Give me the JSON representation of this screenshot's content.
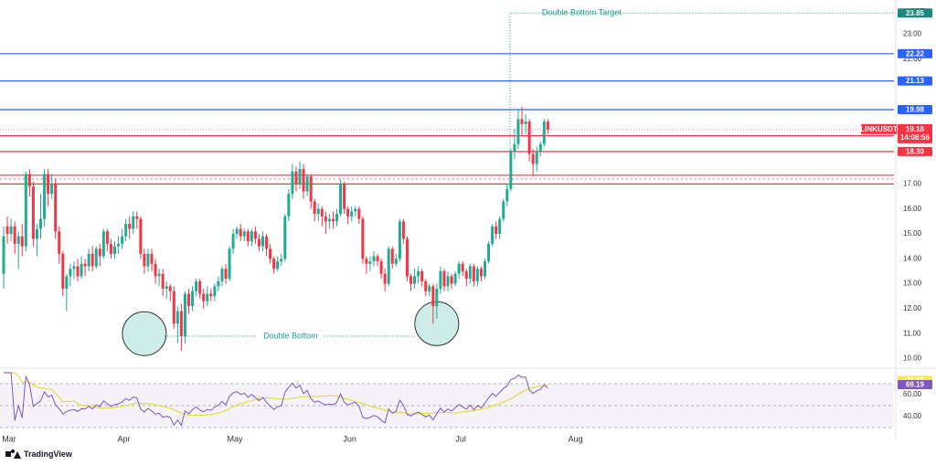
{
  "currency_label": "USDT",
  "branding": "TradingView",
  "colors": {
    "up": "#22ab94",
    "down": "#f23645",
    "resistance_blue": "#2962ff",
    "support_red": "#f23645",
    "rsi_line": "#7e57c2",
    "rsi_ma": "#e6dc3c",
    "annotation": "#1b9e8f"
  },
  "chart_data": {
    "type": "candlestick",
    "symbol": "LINKUSDT",
    "price_axis_ticks": [
      10.0,
      11.0,
      12.0,
      13.0,
      14.0,
      15.0,
      16.0,
      17.0,
      22.0,
      23.0
    ],
    "price_axis_labels": [
      "10.00",
      "11.00",
      "12.00",
      "13.00",
      "14.00",
      "15.00",
      "16.00",
      "17.00",
      "22.00",
      "23.00"
    ],
    "price_range": [
      9.8,
      24.3
    ],
    "rsi_axis_labels": [
      "60.00",
      "40.00"
    ],
    "rsi_axis_ticks": [
      60,
      40
    ],
    "rsi_range": [
      30,
      80
    ],
    "x_month_labels": [
      {
        "label": "Mar",
        "day": 0
      },
      {
        "label": "Apr",
        "day": 31
      },
      {
        "label": "May",
        "day": 61
      },
      {
        "label": "Jun",
        "day": 92
      },
      {
        "label": "Jul",
        "day": 122
      },
      {
        "label": "Aug",
        "day": 153
      }
    ],
    "horizontal_levels": [
      {
        "value": 22.22,
        "label": "22.22",
        "color": "#2962ff"
      },
      {
        "value": 21.13,
        "label": "21.13",
        "color": "#2962ff"
      },
      {
        "value": 19.98,
        "label": "19.98",
        "color": "#2962ff"
      },
      {
        "value": 18.93,
        "label": "18.93",
        "color": "#f23645"
      },
      {
        "value": 18.3,
        "label": "18.30",
        "color": "#f23645"
      },
      {
        "value": 17.35,
        "label": "",
        "color": "#f23645"
      },
      {
        "value": 17.0,
        "label": "",
        "color": "#f23645"
      }
    ],
    "current_price": {
      "symbol": "LINKUSDT",
      "value": 19.18,
      "label": "19.18",
      "countdown": "14:08:56"
    },
    "target": {
      "value": 23.85,
      "label": "23.85",
      "text": "Double Bottom Target"
    },
    "double_bottom": {
      "text": "Double Bottom",
      "level": 10.9,
      "lows": [
        {
          "day": 38,
          "price": 11.0
        },
        {
          "day": 117,
          "price": 11.4
        }
      ]
    },
    "rsi": {
      "value": 69.19,
      "label": "69.19",
      "ma": 73.07,
      "ma_label": "73.07"
    },
    "candles": [
      [
        13.4,
        14.9,
        12.8,
        15.3
      ],
      [
        15.3,
        15.0,
        14.6,
        15.7
      ],
      [
        15.0,
        15.3,
        14.7,
        15.6
      ],
      [
        15.3,
        14.6,
        14.2,
        15.5
      ],
      [
        14.6,
        14.9,
        13.6,
        15.1
      ],
      [
        14.9,
        14.5,
        14.1,
        15.4
      ],
      [
        14.5,
        17.4,
        14.3,
        17.5
      ],
      [
        17.4,
        16.9,
        16.5,
        17.6
      ],
      [
        16.9,
        14.8,
        14.5,
        17.1
      ],
      [
        14.8,
        15.2,
        14.1,
        15.4
      ],
      [
        15.2,
        15.6,
        14.8,
        16.6
      ],
      [
        15.6,
        17.4,
        15.3,
        17.6
      ],
      [
        17.4,
        16.6,
        16.1,
        17.6
      ],
      [
        16.6,
        17.0,
        16.4,
        17.4
      ],
      [
        17.0,
        15.1,
        14.8,
        17.2
      ],
      [
        15.1,
        14.2,
        13.8,
        15.3
      ],
      [
        14.2,
        12.8,
        12.5,
        14.3
      ],
      [
        12.8,
        13.3,
        11.9,
        13.4
      ],
      [
        13.3,
        13.6,
        12.9,
        13.8
      ],
      [
        13.6,
        13.7,
        13.2,
        13.9
      ],
      [
        13.7,
        13.3,
        13.1,
        14.0
      ],
      [
        13.3,
        13.8,
        13.2,
        14.1
      ],
      [
        13.8,
        13.7,
        13.3,
        14.0
      ],
      [
        13.7,
        14.2,
        13.5,
        14.4
      ],
      [
        14.2,
        13.7,
        13.5,
        14.5
      ],
      [
        13.7,
        14.4,
        13.6,
        14.5
      ],
      [
        14.4,
        14.1,
        13.7,
        14.6
      ],
      [
        14.1,
        15.1,
        14.0,
        15.2
      ],
      [
        15.1,
        14.6,
        14.3,
        15.2
      ],
      [
        14.6,
        14.2,
        14.0,
        14.8
      ],
      [
        14.2,
        14.5,
        14.0,
        14.7
      ],
      [
        14.5,
        14.6,
        14.2,
        14.9
      ],
      [
        14.6,
        14.9,
        14.4,
        15.2
      ],
      [
        14.9,
        15.4,
        14.7,
        15.6
      ],
      [
        15.4,
        15.2,
        14.8,
        15.7
      ],
      [
        15.2,
        15.7,
        15.0,
        15.9
      ],
      [
        15.7,
        15.6,
        15.2,
        15.9
      ],
      [
        15.6,
        14.2,
        14.0,
        15.7
      ],
      [
        14.2,
        13.7,
        13.4,
        14.4
      ],
      [
        13.7,
        14.2,
        13.5,
        14.4
      ],
      [
        14.2,
        13.8,
        13.5,
        14.4
      ],
      [
        13.8,
        13.3,
        13.0,
        14.0
      ],
      [
        13.3,
        13.4,
        12.9,
        13.6
      ],
      [
        13.4,
        12.8,
        12.5,
        13.6
      ],
      [
        12.8,
        12.9,
        12.4,
        13.1
      ],
      [
        12.9,
        12.7,
        12.3,
        13.0
      ],
      [
        12.7,
        11.4,
        11.2,
        12.9
      ],
      [
        11.4,
        11.9,
        10.6,
        12.1
      ],
      [
        11.9,
        10.9,
        10.3,
        12.2
      ],
      [
        10.9,
        12.6,
        10.6,
        12.7
      ],
      [
        12.6,
        12.1,
        11.8,
        12.8
      ],
      [
        12.1,
        12.7,
        11.9,
        12.9
      ],
      [
        12.7,
        13.1,
        12.5,
        13.2
      ],
      [
        13.1,
        12.6,
        12.4,
        13.2
      ],
      [
        12.6,
        12.3,
        12.0,
        12.8
      ],
      [
        12.3,
        12.6,
        12.1,
        12.9
      ],
      [
        12.6,
        12.5,
        12.3,
        12.8
      ],
      [
        12.5,
        12.9,
        12.3,
        13.0
      ],
      [
        12.9,
        13.1,
        12.7,
        13.3
      ],
      [
        13.1,
        13.6,
        12.9,
        13.7
      ],
      [
        13.6,
        13.2,
        13.0,
        13.8
      ],
      [
        13.2,
        14.4,
        13.1,
        14.5
      ],
      [
        14.4,
        15.0,
        14.2,
        15.2
      ],
      [
        15.0,
        15.2,
        14.8,
        15.3
      ],
      [
        15.2,
        14.9,
        14.7,
        15.4
      ],
      [
        14.9,
        15.1,
        14.7,
        15.2
      ],
      [
        15.1,
        14.7,
        14.5,
        15.2
      ],
      [
        14.7,
        15.1,
        14.5,
        15.2
      ],
      [
        15.1,
        14.8,
        14.6,
        15.3
      ],
      [
        14.8,
        14.5,
        14.3,
        15.0
      ],
      [
        14.5,
        14.9,
        14.3,
        15.1
      ],
      [
        14.9,
        14.4,
        14.1,
        15.0
      ],
      [
        14.4,
        14.0,
        13.8,
        14.6
      ],
      [
        14.0,
        13.6,
        13.4,
        14.1
      ],
      [
        13.6,
        13.9,
        13.5,
        14.1
      ],
      [
        13.9,
        14.0,
        13.7,
        14.2
      ],
      [
        14.0,
        15.7,
        13.9,
        15.8
      ],
      [
        15.7,
        16.6,
        15.5,
        16.8
      ],
      [
        16.6,
        17.5,
        16.4,
        17.8
      ],
      [
        17.5,
        17.0,
        16.7,
        17.7
      ],
      [
        17.0,
        17.6,
        16.8,
        17.9
      ],
      [
        17.6,
        16.7,
        16.4,
        17.8
      ],
      [
        16.7,
        17.3,
        16.5,
        17.4
      ],
      [
        17.3,
        16.3,
        16.0,
        17.4
      ],
      [
        16.3,
        15.8,
        15.5,
        16.4
      ],
      [
        15.8,
        16.0,
        15.5,
        16.2
      ],
      [
        16.0,
        15.7,
        15.3,
        16.1
      ],
      [
        15.7,
        15.5,
        15.0,
        15.9
      ],
      [
        15.5,
        15.6,
        15.2,
        15.8
      ],
      [
        15.6,
        15.5,
        15.2,
        15.9
      ],
      [
        15.5,
        15.8,
        15.3,
        16.0
      ],
      [
        15.8,
        17.0,
        15.7,
        17.2
      ],
      [
        17.0,
        16.0,
        15.8,
        17.1
      ],
      [
        16.0,
        15.7,
        15.4,
        16.1
      ],
      [
        15.7,
        15.9,
        15.5,
        16.1
      ],
      [
        15.9,
        16.0,
        15.7,
        16.1
      ],
      [
        16.0,
        15.6,
        15.4,
        16.1
      ],
      [
        15.6,
        14.0,
        13.8,
        15.7
      ],
      [
        14.0,
        13.8,
        13.4,
        14.1
      ],
      [
        13.8,
        13.9,
        13.5,
        14.1
      ],
      [
        13.9,
        14.1,
        13.7,
        14.3
      ],
      [
        14.1,
        13.9,
        13.7,
        14.2
      ],
      [
        13.9,
        13.4,
        13.2,
        14.0
      ],
      [
        13.4,
        13.0,
        12.7,
        13.6
      ],
      [
        13.0,
        14.4,
        12.9,
        14.5
      ],
      [
        14.4,
        13.8,
        13.6,
        14.5
      ],
      [
        13.8,
        14.0,
        13.7,
        14.2
      ],
      [
        14.0,
        15.5,
        13.9,
        15.6
      ],
      [
        15.5,
        14.8,
        14.6,
        15.6
      ],
      [
        14.8,
        13.3,
        13.1,
        14.9
      ],
      [
        13.3,
        13.0,
        12.7,
        13.4
      ],
      [
        13.0,
        13.3,
        12.8,
        13.6
      ],
      [
        13.3,
        13.5,
        13.0,
        13.7
      ],
      [
        13.5,
        13.1,
        12.9,
        13.6
      ],
      [
        13.1,
        12.7,
        12.5,
        13.2
      ],
      [
        12.7,
        12.9,
        12.5,
        13.0
      ],
      [
        12.9,
        12.1,
        11.4,
        13.0
      ],
      [
        12.1,
        12.8,
        11.6,
        13.0
      ],
      [
        12.8,
        13.5,
        12.6,
        13.7
      ],
      [
        13.5,
        12.9,
        12.7,
        13.6
      ],
      [
        12.9,
        13.3,
        12.7,
        13.5
      ],
      [
        13.3,
        13.0,
        12.8,
        13.4
      ],
      [
        13.0,
        13.4,
        12.9,
        13.5
      ],
      [
        13.4,
        13.8,
        13.2,
        13.9
      ],
      [
        13.8,
        13.5,
        13.3,
        13.9
      ],
      [
        13.5,
        13.2,
        12.9,
        13.6
      ],
      [
        13.2,
        13.7,
        13.0,
        13.8
      ],
      [
        13.7,
        13.1,
        12.9,
        13.8
      ],
      [
        13.1,
        13.6,
        12.9,
        13.7
      ],
      [
        13.6,
        13.3,
        13.1,
        13.7
      ],
      [
        13.3,
        13.9,
        13.2,
        14.0
      ],
      [
        13.9,
        14.6,
        13.8,
        14.7
      ],
      [
        14.6,
        15.3,
        14.5,
        15.4
      ],
      [
        15.3,
        15.0,
        14.8,
        15.5
      ],
      [
        15.0,
        15.6,
        14.8,
        15.7
      ],
      [
        15.6,
        16.3,
        15.5,
        16.4
      ],
      [
        16.3,
        16.8,
        16.1,
        17.0
      ],
      [
        16.8,
        18.3,
        16.7,
        18.4
      ],
      [
        18.3,
        18.6,
        18.0,
        19.2
      ],
      [
        18.6,
        19.6,
        18.4,
        20.0
      ],
      [
        19.6,
        19.4,
        18.9,
        20.1
      ],
      [
        19.4,
        19.5,
        19.0,
        19.8
      ],
      [
        19.5,
        18.2,
        17.9,
        19.6
      ],
      [
        18.2,
        17.8,
        17.3,
        18.4
      ],
      [
        17.8,
        18.3,
        17.5,
        18.5
      ],
      [
        18.3,
        18.6,
        18.1,
        18.7
      ],
      [
        18.6,
        19.5,
        18.5,
        19.6
      ],
      [
        19.5,
        19.18,
        19.0,
        19.6
      ]
    ]
  }
}
